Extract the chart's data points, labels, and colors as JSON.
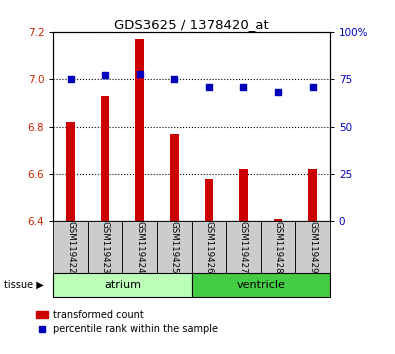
{
  "title": "GDS3625 / 1378420_at",
  "samples": [
    "GSM119422",
    "GSM119423",
    "GSM119424",
    "GSM119425",
    "GSM119426",
    "GSM119427",
    "GSM119428",
    "GSM119429"
  ],
  "transformed_counts": [
    6.82,
    6.93,
    7.17,
    6.77,
    6.58,
    6.62,
    6.41,
    6.62
  ],
  "percentile_ranks": [
    75,
    77,
    78,
    75,
    71,
    71,
    68,
    71
  ],
  "groups": [
    {
      "label": "atrium",
      "indices": [
        0,
        1,
        2,
        3
      ],
      "color": "#CCFFCC"
    },
    {
      "label": "ventricle",
      "indices": [
        4,
        5,
        6,
        7
      ],
      "color": "#44DD44"
    }
  ],
  "ylim_left": [
    6.4,
    7.2
  ],
  "ylim_right": [
    0,
    100
  ],
  "yticks_left": [
    6.4,
    6.6,
    6.8,
    7.0,
    7.2
  ],
  "yticks_right": [
    0,
    25,
    50,
    75,
    100
  ],
  "bar_color": "#CC0000",
  "dot_color": "#0000BB",
  "grid_color": "#000000",
  "tick_label_color_left": "#CC2200",
  "tick_label_color_right": "#0000BB",
  "bar_width": 0.25,
  "dot_size": 18,
  "legend_labels": [
    "transformed count",
    "percentile rank within the sample"
  ],
  "tissue_label": "tissue",
  "sample_box_color": "#CCCCCC",
  "atrium_bg": "#BBFFBB",
  "ventricle_bg": "#44CC44"
}
